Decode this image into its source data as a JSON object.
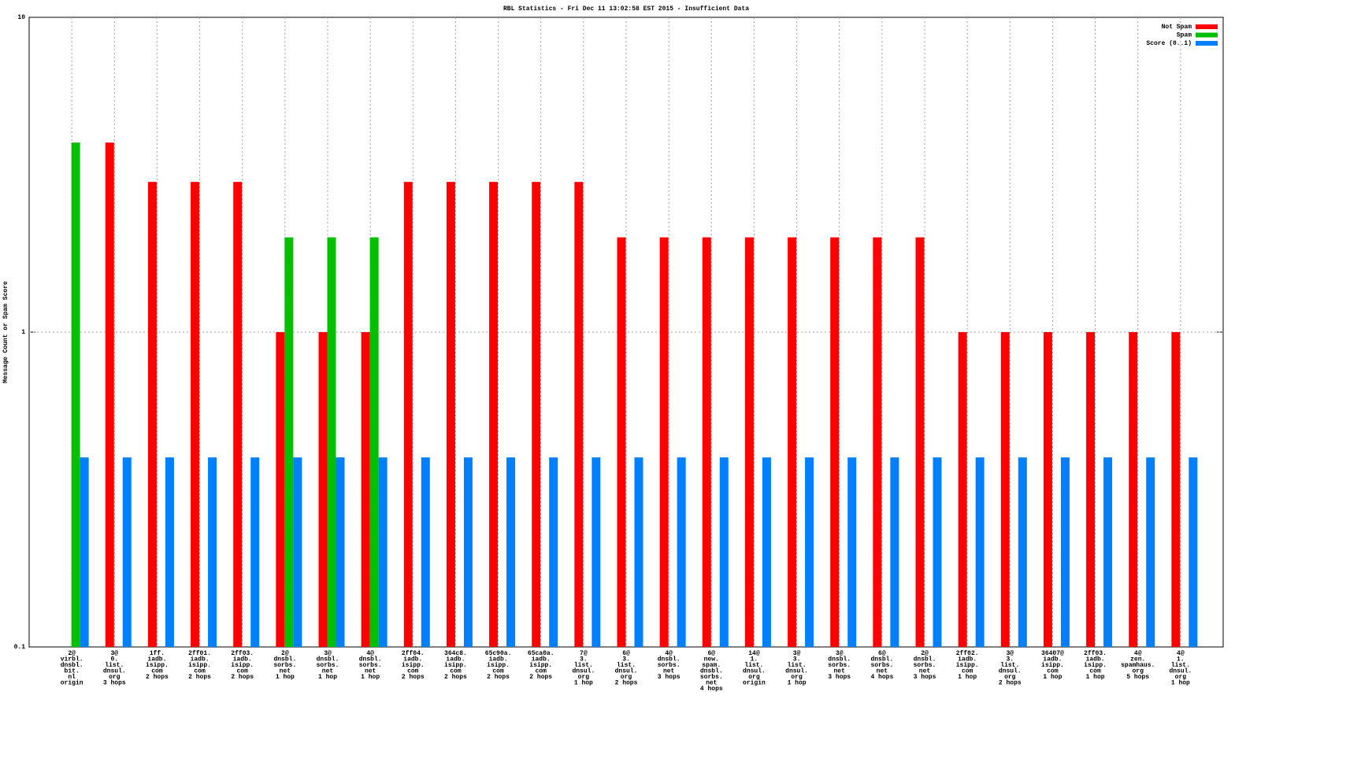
{
  "chart_data": {
    "type": "bar",
    "title": "RBL Statistics - Fri Dec 11 13:02:58 EST 2015 - Insufficient Data",
    "y_label": "Message Count or Spam Score",
    "log_scale": true,
    "grid": true,
    "legend_position": "top-right",
    "ylim": [
      0.1,
      10
    ],
    "yticks": [
      0.1,
      1,
      10
    ],
    "categories": [
      [
        "2@",
        "virbl.",
        "dnsbl.",
        "bit.",
        "nl",
        "origin"
      ],
      [
        "3@",
        "0.",
        "list.",
        "dnsul.",
        "org",
        "3 hops"
      ],
      [
        "1ff.",
        "iadb.",
        "isipp.",
        "com",
        "2 hops"
      ],
      [
        "2ff01.",
        "iadb.",
        "isipp.",
        "com",
        "2 hops"
      ],
      [
        "2ff03.",
        "iadb.",
        "isipp.",
        "com",
        "2 hops"
      ],
      [
        "2@",
        "dnsbl.",
        "sorbs.",
        "net",
        "1 hop"
      ],
      [
        "3@",
        "dnsbl.",
        "sorbs.",
        "net",
        "1 hop"
      ],
      [
        "4@",
        "dnsbl.",
        "sorbs.",
        "net",
        "1 hop"
      ],
      [
        "2ff04.",
        "iadb.",
        "isipp.",
        "com",
        "2 hops"
      ],
      [
        "364c8.",
        "iadb.",
        "isipp.",
        "com",
        "2 hops"
      ],
      [
        "65c90a.",
        "iadb.",
        "isipp.",
        "com",
        "2 hops"
      ],
      [
        "65ca0a.",
        "iadb.",
        "isipp.",
        "com",
        "2 hops"
      ],
      [
        "7@",
        "3.",
        "list.",
        "dnsul.",
        "org",
        "1 hop"
      ],
      [
        "6@",
        "3.",
        "list.",
        "dnsul.",
        "org",
        "2 hops"
      ],
      [
        "4@",
        "dnsbl.",
        "sorbs.",
        "net",
        "3 hops"
      ],
      [
        "6@",
        "new.",
        "spam.",
        "dnsbl.",
        "sorbs.",
        "net",
        "4 hops"
      ],
      [
        "14@",
        "1.",
        "list.",
        "dnsul.",
        "org",
        "origin"
      ],
      [
        "3@",
        "3.",
        "list.",
        "dnsul.",
        "org",
        "1 hop"
      ],
      [
        "3@",
        "dnsbl.",
        "sorbs.",
        "net",
        "3 hops"
      ],
      [
        "6@",
        "dnsbl.",
        "sorbs.",
        "net",
        "4 hops"
      ],
      [
        "2@",
        "dnsbl.",
        "sorbs.",
        "net",
        "3 hops"
      ],
      [
        "2ff02.",
        "iadb.",
        "isipp.",
        "com",
        "1 hop"
      ],
      [
        "3@",
        "3.",
        "list.",
        "dnsul.",
        "org",
        "2 hops"
      ],
      [
        "36407@",
        "iadb.",
        "isipp.",
        "com",
        "1 hop"
      ],
      [
        "2ff03.",
        "iadb.",
        "isipp.",
        "com",
        "1 hop"
      ],
      [
        "4@",
        "zen.",
        "spamhaus.",
        "org",
        "5 hops"
      ],
      [
        "4@",
        "1.",
        "list.",
        "dnsul.",
        "org",
        "1 hop"
      ]
    ],
    "series": [
      {
        "name": "Not Spam",
        "color": "#ff0000",
        "values": [
          null,
          4,
          3,
          3,
          3,
          1,
          1,
          1,
          3,
          3,
          3,
          3,
          3,
          2,
          2,
          2,
          2,
          2,
          2,
          2,
          2,
          1,
          1,
          1,
          1,
          1,
          1
        ]
      },
      {
        "name": "Spam",
        "color": "#00c000",
        "values": [
          4,
          null,
          null,
          null,
          null,
          2,
          2,
          2,
          null,
          null,
          null,
          null,
          null,
          null,
          null,
          null,
          null,
          null,
          null,
          null,
          null,
          null,
          null,
          null,
          null,
          null,
          null
        ]
      },
      {
        "name": "Score (0..1)",
        "color": "#0080ff",
        "values": [
          0.4,
          0.4,
          0.4,
          0.4,
          0.4,
          0.4,
          0.4,
          0.4,
          0.4,
          0.4,
          0.4,
          0.4,
          0.4,
          0.4,
          0.4,
          0.4,
          0.4,
          0.4,
          0.4,
          0.4,
          0.4,
          0.4,
          0.4,
          0.4,
          0.4,
          0.4,
          0.4
        ]
      }
    ]
  }
}
